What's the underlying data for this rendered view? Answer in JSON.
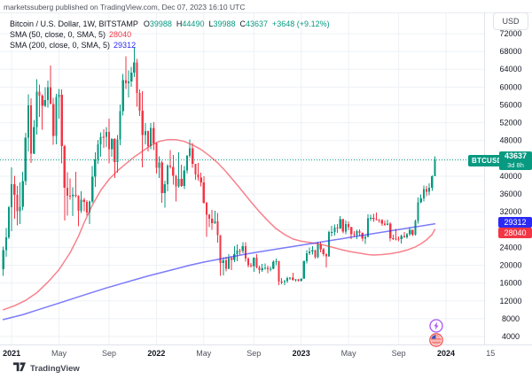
{
  "attribution": "marketssuberg published on TradingView.com, Dec 07, 2023 16:10 UTC",
  "symbol_label": "BTCUSD",
  "legend": {
    "title": "Bitcoin / U.S. Dollar, 1W, BITSTAMP",
    "ohlc": {
      "o_label": "O",
      "o_value": "39988",
      "h_label": "H",
      "h_value": "44490",
      "l_label": "L",
      "l_value": "39988",
      "c_label": "C",
      "c_value": "43637",
      "change": "+3648 (+9.12%)"
    },
    "sma50_label": "SMA (50, close, 0, SMA, 5)",
    "sma50_value": "28040",
    "sma200_label": "SMA (200, close, 0, SMA, 5)",
    "sma200_value": "29312"
  },
  "price_axis": {
    "currency": "USD",
    "sma200_badge": "29312",
    "sma50_badge": "28040",
    "price_badge": {
      "value": "43637",
      "countdown": "3d 8h"
    }
  },
  "branding": {
    "logo_text": "TradingView"
  },
  "colors": {
    "up": "#089981",
    "down": "#f23645",
    "accent": "#089981",
    "badge_blue": "#2b2af5",
    "badge_red": "#f23645",
    "grid": "#eef1f6",
    "axis_border": "#e0e3eb",
    "text_dark": "#131722",
    "text_gray": "#50535e"
  },
  "chart_data": {
    "type": "candlestick",
    "title": "Bitcoin / U.S. Dollar, 1W, BITSTAMP",
    "interval": "1W",
    "legend_note": "weekly candles Dec 2020 - Dec 2023, prices in USD",
    "last_price": 43637,
    "ylim": [
      2200,
      76800
    ],
    "y_ticks": [
      4000,
      8000,
      12000,
      16000,
      20000,
      24000,
      28000,
      32000,
      36000,
      40000,
      44000,
      48000,
      52000,
      56000,
      60000,
      64000,
      68000,
      72000
    ],
    "x_ticks": [
      {
        "label": "2021",
        "week": 3,
        "year": true
      },
      {
        "label": "May",
        "week": 20,
        "year": false
      },
      {
        "label": "Sep",
        "week": 38,
        "year": false
      },
      {
        "label": "2022",
        "week": 55,
        "year": true
      },
      {
        "label": "May",
        "week": 72,
        "year": false
      },
      {
        "label": "Sep",
        "week": 90,
        "year": false
      },
      {
        "label": "2023",
        "week": 107,
        "year": true
      },
      {
        "label": "May",
        "week": 124,
        "year": false
      },
      {
        "label": "Sep",
        "week": 142,
        "year": false
      },
      {
        "label": "2024",
        "week": 159,
        "year": true
      },
      {
        "label": "15",
        "week": 175,
        "year": false
      }
    ],
    "candles": [
      [
        19150,
        24200,
        17600,
        23400
      ],
      [
        23400,
        28400,
        21900,
        26300
      ],
      [
        26300,
        33300,
        25900,
        33000
      ],
      [
        33000,
        41950,
        27700,
        38200
      ],
      [
        38200,
        40100,
        30400,
        35800
      ],
      [
        35800,
        37850,
        28950,
        32100
      ],
      [
        32100,
        38600,
        29250,
        33100
      ],
      [
        33100,
        41000,
        32300,
        38900
      ],
      [
        38900,
        49700,
        38000,
        48600
      ],
      [
        48600,
        58350,
        45600,
        55900
      ],
      [
        55900,
        57500,
        43000,
        45100
      ],
      [
        45100,
        52650,
        44950,
        51000
      ],
      [
        51000,
        61800,
        49300,
        59000
      ],
      [
        59000,
        60600,
        53300,
        58050
      ],
      [
        58050,
        58400,
        50450,
        55800
      ],
      [
        55800,
        60000,
        55500,
        57050
      ],
      [
        57050,
        61500,
        55400,
        60000
      ],
      [
        60000,
        64850,
        59550,
        56200
      ],
      [
        56200,
        57550,
        47000,
        49050
      ],
      [
        49050,
        58450,
        47100,
        57800
      ],
      [
        57800,
        59550,
        52900,
        58250
      ],
      [
        58250,
        59500,
        42900,
        46700
      ],
      [
        46700,
        47000,
        30000,
        37450
      ],
      [
        37450,
        40850,
        31100,
        35650
      ],
      [
        35650,
        39450,
        34750,
        35550
      ],
      [
        35550,
        37500,
        31000,
        35800
      ],
      [
        35800,
        41000,
        35200,
        35600
      ],
      [
        35600,
        35750,
        28800,
        32250
      ],
      [
        32250,
        36600,
        31700,
        34700
      ],
      [
        34700,
        35100,
        32100,
        34250
      ],
      [
        34250,
        34650,
        31100,
        31800
      ],
      [
        31800,
        34500,
        29300,
        34300
      ],
      [
        34300,
        42300,
        33900,
        39900
      ],
      [
        39900,
        45350,
        37650,
        43800
      ],
      [
        43800,
        48150,
        42800,
        47100
      ],
      [
        47100,
        49800,
        44400,
        48850
      ],
      [
        48850,
        50500,
        46350,
        48800
      ],
      [
        48800,
        51000,
        46500,
        49950
      ],
      [
        49950,
        52950,
        42830,
        46050
      ],
      [
        46050,
        48500,
        44350,
        48300
      ],
      [
        48300,
        48500,
        39600,
        43200
      ],
      [
        43200,
        49250,
        40750,
        48250
      ],
      [
        48250,
        56100,
        46900,
        54650
      ],
      [
        54650,
        62950,
        53650,
        61550
      ],
      [
        61550,
        66950,
        59600,
        60850
      ],
      [
        60850,
        63700,
        57700,
        61300
      ],
      [
        61300,
        64550,
        60100,
        63300
      ],
      [
        63300,
        69000,
        62300,
        65500
      ],
      [
        65500,
        66350,
        55600,
        58650
      ],
      [
        58650,
        59450,
        53500,
        54750
      ],
      [
        54750,
        59100,
        42000,
        49200
      ],
      [
        49200,
        51950,
        47100,
        50100
      ],
      [
        50100,
        50200,
        45550,
        46700
      ],
      [
        46700,
        51900,
        46100,
        50800
      ],
      [
        50800,
        52100,
        45900,
        47300
      ],
      [
        47300,
        47600,
        40550,
        41900
      ],
      [
        41900,
        44500,
        39600,
        43100
      ],
      [
        43100,
        43500,
        34000,
        36250
      ],
      [
        36250,
        38950,
        32950,
        38200
      ],
      [
        38200,
        42700,
        36650,
        42400
      ],
      [
        42400,
        45850,
        41700,
        42100
      ],
      [
        42100,
        44750,
        38050,
        40100
      ],
      [
        40100,
        40300,
        34300,
        37700
      ],
      [
        37700,
        45400,
        37450,
        39400
      ],
      [
        39400,
        42600,
        37600,
        37800
      ],
      [
        37800,
        42320,
        37150,
        41280
      ],
      [
        41280,
        44800,
        40600,
        44540
      ],
      [
        44540,
        48200,
        44200,
        46300
      ],
      [
        46300,
        47450,
        41900,
        42750
      ],
      [
        42750,
        42800,
        39200,
        40400
      ],
      [
        40400,
        42950,
        38950,
        39700
      ],
      [
        39700,
        40800,
        37700,
        38600
      ],
      [
        38600,
        40000,
        33800,
        34050
      ],
      [
        34050,
        34200,
        26350,
        31300
      ],
      [
        31300,
        31500,
        28600,
        30450
      ],
      [
        30450,
        32400,
        28000,
        29450
      ],
      [
        29450,
        32200,
        29300,
        29850
      ],
      [
        29850,
        31700,
        25100,
        26750
      ],
      [
        26750,
        26800,
        17600,
        20550
      ],
      [
        20550,
        21800,
        17750,
        21050
      ],
      [
        21050,
        21900,
        18600,
        19250
      ],
      [
        19250,
        22500,
        19150,
        21600
      ],
      [
        21600,
        22000,
        18900,
        21200
      ],
      [
        21200,
        24250,
        20750,
        22450
      ],
      [
        22450,
        24650,
        20950,
        23300
      ],
      [
        23300,
        23650,
        22400,
        23175
      ],
      [
        23175,
        25200,
        22650,
        24300
      ],
      [
        24300,
        25200,
        20800,
        21500
      ],
      [
        21500,
        21800,
        19550,
        20000
      ],
      [
        20000,
        20550,
        19550,
        19800
      ],
      [
        19800,
        21800,
        18550,
        21650
      ],
      [
        21650,
        22450,
        19300,
        19500
      ],
      [
        19500,
        19950,
        18150,
        18900
      ],
      [
        18900,
        20350,
        18500,
        19300
      ],
      [
        19300,
        20450,
        19050,
        19450
      ],
      [
        19450,
        19950,
        18200,
        19100
      ],
      [
        19100,
        19700,
        18650,
        19200
      ],
      [
        19200,
        21050,
        19150,
        20800
      ],
      [
        20800,
        21450,
        20050,
        20900
      ],
      [
        20900,
        21000,
        15500,
        16300
      ],
      [
        16300,
        17150,
        15750,
        16250
      ],
      [
        16250,
        16750,
        15500,
        16450
      ],
      [
        16450,
        17400,
        16050,
        17100
      ],
      [
        17100,
        17350,
        16700,
        17200
      ],
      [
        17200,
        18350,
        16550,
        16750
      ],
      [
        16750,
        16950,
        16350,
        16850
      ],
      [
        16850,
        16950,
        16350,
        16550
      ],
      [
        16550,
        17050,
        16350,
        17000
      ],
      [
        17000,
        21050,
        16950,
        20900
      ],
      [
        20900,
        23350,
        20450,
        22700
      ],
      [
        22700,
        23950,
        22300,
        23050
      ],
      [
        23050,
        24250,
        22350,
        23350
      ],
      [
        23350,
        23450,
        21450,
        21800
      ],
      [
        21800,
        25250,
        21550,
        24650
      ],
      [
        24650,
        25300,
        22850,
        23550
      ],
      [
        23550,
        23900,
        22000,
        22450
      ],
      [
        22450,
        22650,
        19550,
        22000
      ],
      [
        22000,
        27750,
        21900,
        27450
      ],
      [
        27450,
        28850,
        26500,
        27500
      ],
      [
        27500,
        29150,
        26650,
        28450
      ],
      [
        28450,
        29250,
        27250,
        28300
      ],
      [
        28300,
        31050,
        28150,
        30300
      ],
      [
        30300,
        30450,
        27150,
        27600
      ],
      [
        27600,
        30050,
        26950,
        29250
      ],
      [
        29250,
        29850,
        27900,
        28600
      ],
      [
        28600,
        28700,
        25850,
        26950
      ],
      [
        26950,
        27650,
        26400,
        26750
      ],
      [
        26750,
        28000,
        25900,
        27650
      ],
      [
        27650,
        28050,
        26550,
        27250
      ],
      [
        27250,
        27400,
        25350,
        25950
      ],
      [
        25950,
        26750,
        24800,
        26350
      ],
      [
        26350,
        31400,
        26250,
        30550
      ],
      [
        30550,
        31300,
        29900,
        30600
      ],
      [
        30600,
        31550,
        29750,
        30300
      ],
      [
        30300,
        31850,
        30050,
        30250
      ],
      [
        30250,
        30350,
        29550,
        30100
      ],
      [
        30100,
        30350,
        28900,
        29350
      ],
      [
        29350,
        30050,
        28850,
        29050
      ],
      [
        29050,
        30200,
        28950,
        29400
      ],
      [
        29400,
        29650,
        25350,
        26100
      ],
      [
        26100,
        26850,
        25700,
        26000
      ],
      [
        26000,
        28150,
        25550,
        25950
      ],
      [
        25950,
        26450,
        25350,
        25850
      ],
      [
        25850,
        26850,
        24900,
        26550
      ],
      [
        26550,
        27500,
        26150,
        26250
      ],
      [
        26250,
        27300,
        26000,
        26950
      ],
      [
        26950,
        28600,
        26550,
        27950
      ],
      [
        27950,
        28000,
        26550,
        26850
      ],
      [
        26850,
        30200,
        26700,
        29950
      ],
      [
        29950,
        35200,
        29350,
        34100
      ],
      [
        34100,
        35950,
        33950,
        35050
      ],
      [
        35050,
        37950,
        34350,
        37150
      ],
      [
        37150,
        37850,
        35550,
        36550
      ],
      [
        36550,
        38400,
        35750,
        37450
      ],
      [
        37450,
        40200,
        36700,
        39988
      ],
      [
        39988,
        44490,
        39988,
        43637
      ]
    ],
    "sma50": {
      "period": 50,
      "color": "#f23645",
      "points": [
        [
          0,
          10000
        ],
        [
          4,
          10900
        ],
        [
          8,
          12100
        ],
        [
          12,
          13800
        ],
        [
          16,
          16200
        ],
        [
          20,
          19000
        ],
        [
          24,
          22800
        ],
        [
          27,
          26500
        ],
        [
          29,
          29500
        ],
        [
          32,
          33500
        ],
        [
          35,
          36800
        ],
        [
          38,
          39300
        ],
        [
          41,
          41200
        ],
        [
          44,
          42800
        ],
        [
          47,
          44300
        ],
        [
          50,
          45600
        ],
        [
          53,
          46900
        ],
        [
          56,
          47800
        ],
        [
          59,
          48200
        ],
        [
          62,
          48200
        ],
        [
          65,
          47800
        ],
        [
          68,
          47000
        ],
        [
          71,
          46000
        ],
        [
          74,
          44600
        ],
        [
          77,
          43000
        ],
        [
          80,
          41000
        ],
        [
          83,
          38800
        ],
        [
          86,
          36500
        ],
        [
          89,
          34200
        ],
        [
          92,
          32000
        ],
        [
          95,
          30000
        ],
        [
          98,
          28200
        ],
        [
          101,
          26900
        ],
        [
          104,
          25900
        ],
        [
          107,
          25400
        ],
        [
          110,
          25100
        ],
        [
          113,
          24800
        ],
        [
          116,
          24400
        ],
        [
          119,
          23900
        ],
        [
          122,
          23400
        ],
        [
          125,
          23000
        ],
        [
          128,
          22700
        ],
        [
          131,
          22400
        ],
        [
          133,
          22300
        ],
        [
          136,
          22400
        ],
        [
          139,
          22600
        ],
        [
          142,
          22900
        ],
        [
          145,
          23400
        ],
        [
          148,
          24100
        ],
        [
          150,
          24800
        ],
        [
          152,
          25700
        ],
        [
          154,
          26900
        ],
        [
          155,
          28040
        ]
      ]
    },
    "sma200": {
      "period": 200,
      "color": "#2b2af5",
      "points": [
        [
          0,
          7800
        ],
        [
          7,
          8900
        ],
        [
          12,
          9900
        ],
        [
          17,
          10900
        ],
        [
          22,
          11900
        ],
        [
          27,
          12900
        ],
        [
          32,
          13900
        ],
        [
          37,
          14900
        ],
        [
          42,
          15800
        ],
        [
          47,
          16700
        ],
        [
          52,
          17600
        ],
        [
          57,
          18400
        ],
        [
          62,
          19200
        ],
        [
          67,
          20000
        ],
        [
          72,
          20700
        ],
        [
          77,
          21300
        ],
        [
          82,
          21900
        ],
        [
          87,
          22500
        ],
        [
          92,
          23000
        ],
        [
          97,
          23500
        ],
        [
          102,
          24000
        ],
        [
          107,
          24500
        ],
        [
          112,
          25000
        ],
        [
          117,
          25500
        ],
        [
          122,
          26000
        ],
        [
          127,
          26500
        ],
        [
          132,
          27000
        ],
        [
          137,
          27500
        ],
        [
          142,
          28000
        ],
        [
          147,
          28500
        ],
        [
          152,
          29000
        ],
        [
          155,
          29312
        ]
      ]
    },
    "events": [
      {
        "icon": "lightning-icon",
        "week": 155
      },
      {
        "icon": "us-flag-icon",
        "week": 155
      }
    ]
  }
}
